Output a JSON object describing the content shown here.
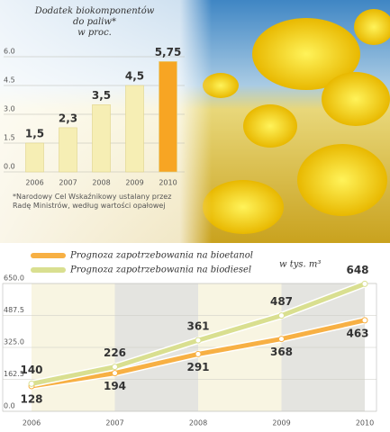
{
  "chart_data": [
    {
      "type": "bar",
      "title": "Dodatek biokomponentów do paliw* w proc.",
      "categories": [
        "2006",
        "2007",
        "2008",
        "2009",
        "2010"
      ],
      "values": [
        1.5,
        2.3,
        3.5,
        4.5,
        5.75
      ],
      "value_labels": [
        "1,5",
        "2,3",
        "3,5",
        "4,5",
        "5,75"
      ],
      "colors": [
        "#f6eeb4",
        "#f6eeb4",
        "#f6eeb4",
        "#f6eeb4",
        "#f7a523"
      ],
      "value_label_colors": [
        "#333333",
        "#333333",
        "#333333",
        "#333333",
        "#e2231a"
      ],
      "ylim": [
        0,
        6
      ],
      "yticks": [
        {
          "value": 0,
          "label": "0.0"
        },
        {
          "value": 1.5,
          "label": "1.5"
        },
        {
          "value": 3,
          "label": "3.0"
        },
        {
          "value": 4.5,
          "label": "4.5"
        },
        {
          "value": 6,
          "label": "6.0"
        }
      ],
      "grid": true,
      "note": "*Narodowy Cel Wskaźnikowy ustalany przez Radę Ministrów, według wartości opałowej"
    },
    {
      "type": "line",
      "annotation": "w tys. m³",
      "x": [
        2006,
        2007,
        2008,
        2009,
        2010
      ],
      "xlim": [
        2006,
        2010
      ],
      "xticks": [
        2006,
        2007,
        2008,
        2009,
        2010
      ],
      "ylim": [
        0,
        650
      ],
      "yticks": [
        {
          "value": 0,
          "label": "0.0"
        },
        {
          "value": 162.5,
          "label": "162.5"
        },
        {
          "value": 325,
          "label": "325.0"
        },
        {
          "value": 487.5,
          "label": "487.5"
        },
        {
          "value": 650,
          "label": "650.0"
        }
      ],
      "series": [
        {
          "name": "Prognoza zapotrzebowania na bioetanol",
          "color": "#f7b044",
          "values": [
            128,
            194,
            291,
            368,
            463
          ]
        },
        {
          "name": "Prognoza zapotrzebowania na biodiesel",
          "color": "#d9df90",
          "values": [
            140,
            226,
            361,
            487,
            648
          ]
        }
      ]
    }
  ]
}
